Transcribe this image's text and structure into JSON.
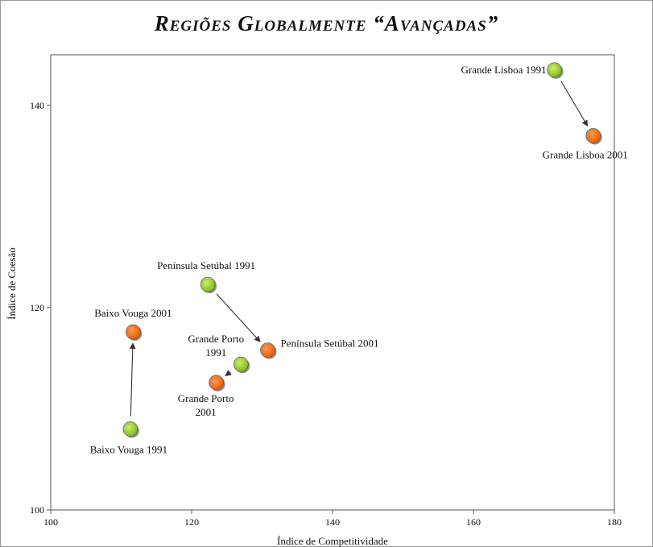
{
  "chart_data": {
    "type": "scatter",
    "title": "Regiões Globalmente “Avançadas”",
    "xlabel": "Índice de Competitividade",
    "ylabel": "Índice de Coesão",
    "xlim": [
      100,
      180
    ],
    "ylim": [
      100,
      145
    ],
    "xticks": [
      100,
      120,
      140,
      160,
      180
    ],
    "yticks": [
      100,
      120,
      140
    ],
    "grid": false,
    "colors": {
      "1991": "#9acd32",
      "2001": "#ff6a10"
    },
    "points": [
      {
        "label": "Grande Lisboa 1991",
        "x": 171.5,
        "y": 143.5,
        "year": "1991"
      },
      {
        "label": "Grande Lisboa 2001",
        "x": 177,
        "y": 137,
        "year": "2001"
      },
      {
        "label": "Península Setúbal 1991",
        "x": 122.3,
        "y": 122.3,
        "year": "1991"
      },
      {
        "label": "Península Setúbal 2001",
        "x": 130.8,
        "y": 115.8,
        "year": "2001"
      },
      {
        "label": "Grande Porto 1991",
        "x": 127,
        "y": 114.4,
        "year": "1991"
      },
      {
        "label": "Grande Porto 2001",
        "x": 123.5,
        "y": 112.6,
        "year": "2001"
      },
      {
        "label": "Baixo Vouga 1991",
        "x": 111.3,
        "y": 108,
        "year": "1991"
      },
      {
        "label": "Baixo Vouga 2001",
        "x": 111.7,
        "y": 117.6,
        "year": "2001"
      }
    ],
    "arrows": [
      {
        "from": 0,
        "to": 1
      },
      {
        "from": 2,
        "to": 3
      },
      {
        "from": 4,
        "to": 5
      },
      {
        "from": 6,
        "to": 7
      }
    ]
  }
}
